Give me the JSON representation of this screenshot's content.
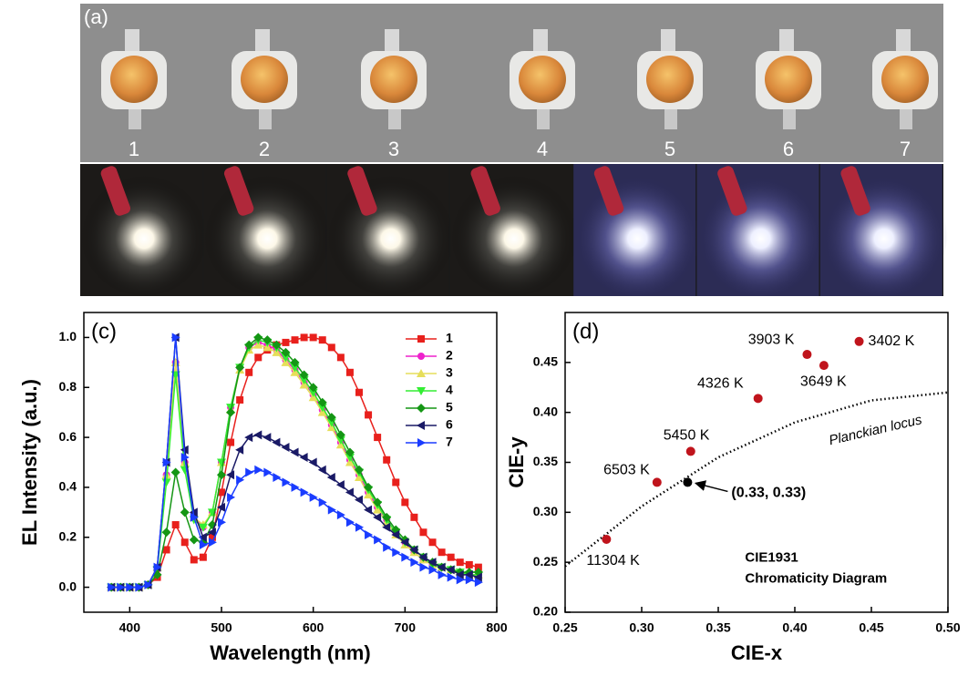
{
  "photo_panel": {
    "label": "(a)",
    "led_numbers": [
      "1",
      "2",
      "3",
      "4",
      "5",
      "6",
      "7"
    ]
  },
  "chart_data": [
    {
      "type": "line",
      "title": "(c)",
      "x_label": "Wavelength (nm)",
      "y_label": "EL Intensity (a.u.)",
      "x": [
        380,
        390,
        400,
        410,
        420,
        430,
        440,
        450,
        460,
        470,
        480,
        490,
        500,
        510,
        520,
        530,
        540,
        550,
        560,
        570,
        580,
        590,
        600,
        610,
        620,
        630,
        640,
        650,
        660,
        670,
        680,
        690,
        700,
        710,
        720,
        730,
        740,
        750,
        760,
        770,
        780
      ],
      "xlim": [
        350,
        800
      ],
      "xticks": [
        400,
        500,
        600,
        700,
        800
      ],
      "ylim": [
        -0.1,
        1.1
      ],
      "yticks": [
        {
          "value": 0,
          "label": "0.0"
        },
        0.2,
        0.4,
        0.6,
        0.8,
        {
          "value": 1,
          "label": "1.0"
        }
      ],
      "legend": "upper right",
      "series": [
        {
          "name": "1",
          "color": "#e8201c",
          "marker": "square",
          "values": [
            0,
            0,
            0,
            0,
            0.01,
            0.04,
            0.15,
            0.25,
            0.18,
            0.11,
            0.12,
            0.2,
            0.38,
            0.58,
            0.75,
            0.86,
            0.92,
            0.95,
            0.97,
            0.98,
            0.99,
            1.0,
            1.0,
            0.99,
            0.96,
            0.92,
            0.86,
            0.78,
            0.69,
            0.6,
            0.51,
            0.42,
            0.34,
            0.28,
            0.22,
            0.18,
            0.14,
            0.12,
            0.1,
            0.09,
            0.08
          ]
        },
        {
          "name": "2",
          "color": "#ee22cc",
          "marker": "circle",
          "values": [
            0,
            0,
            0,
            0,
            0.01,
            0.08,
            0.45,
            0.9,
            0.5,
            0.28,
            0.24,
            0.3,
            0.5,
            0.72,
            0.88,
            0.96,
            0.98,
            0.97,
            0.95,
            0.91,
            0.87,
            0.82,
            0.77,
            0.71,
            0.65,
            0.58,
            0.51,
            0.45,
            0.38,
            0.32,
            0.27,
            0.22,
            0.18,
            0.14,
            0.11,
            0.09,
            0.08,
            0.07,
            0.06,
            0.05,
            0.05
          ]
        },
        {
          "name": "3",
          "color": "#e6de5a",
          "marker": "triangle-up",
          "values": [
            0,
            0,
            0,
            0,
            0.01,
            0.08,
            0.45,
            0.9,
            0.5,
            0.28,
            0.25,
            0.3,
            0.5,
            0.71,
            0.87,
            0.95,
            0.97,
            0.96,
            0.94,
            0.9,
            0.86,
            0.81,
            0.76,
            0.7,
            0.64,
            0.57,
            0.5,
            0.44,
            0.37,
            0.31,
            0.26,
            0.21,
            0.17,
            0.14,
            0.11,
            0.09,
            0.08,
            0.07,
            0.06,
            0.05,
            0.05
          ]
        },
        {
          "name": "4",
          "color": "#33ee33",
          "marker": "triangle-down",
          "values": [
            0,
            0,
            0,
            0,
            0.01,
            0.07,
            0.42,
            0.85,
            0.47,
            0.27,
            0.24,
            0.3,
            0.5,
            0.72,
            0.88,
            0.96,
            0.99,
            0.98,
            0.96,
            0.92,
            0.88,
            0.83,
            0.78,
            0.72,
            0.66,
            0.59,
            0.52,
            0.46,
            0.39,
            0.33,
            0.27,
            0.22,
            0.18,
            0.15,
            0.12,
            0.09,
            0.08,
            0.07,
            0.06,
            0.05,
            0.05
          ]
        },
        {
          "name": "5",
          "color": "#149614",
          "marker": "diamond",
          "values": [
            0,
            0,
            0,
            0,
            0.01,
            0.05,
            0.22,
            0.46,
            0.3,
            0.19,
            0.18,
            0.25,
            0.45,
            0.7,
            0.88,
            0.97,
            1.0,
            0.99,
            0.97,
            0.94,
            0.9,
            0.85,
            0.8,
            0.74,
            0.68,
            0.61,
            0.54,
            0.47,
            0.4,
            0.34,
            0.28,
            0.23,
            0.19,
            0.15,
            0.12,
            0.1,
            0.08,
            0.07,
            0.06,
            0.06,
            0.06
          ]
        },
        {
          "name": "6",
          "color": "#1a1a66",
          "marker": "triangle-left",
          "values": [
            0,
            0,
            0,
            0,
            0.01,
            0.08,
            0.5,
            1.0,
            0.55,
            0.3,
            0.2,
            0.22,
            0.32,
            0.45,
            0.55,
            0.6,
            0.61,
            0.6,
            0.58,
            0.56,
            0.54,
            0.52,
            0.5,
            0.47,
            0.44,
            0.41,
            0.38,
            0.35,
            0.31,
            0.28,
            0.24,
            0.21,
            0.18,
            0.15,
            0.12,
            0.1,
            0.08,
            0.07,
            0.05,
            0.05,
            0.04
          ]
        },
        {
          "name": "7",
          "color": "#1a3cff",
          "marker": "triangle-right",
          "values": [
            0,
            0,
            0,
            0,
            0.01,
            0.08,
            0.5,
            1.0,
            0.52,
            0.28,
            0.17,
            0.18,
            0.26,
            0.36,
            0.43,
            0.46,
            0.47,
            0.46,
            0.44,
            0.42,
            0.4,
            0.38,
            0.36,
            0.34,
            0.31,
            0.29,
            0.26,
            0.24,
            0.21,
            0.19,
            0.16,
            0.14,
            0.12,
            0.1,
            0.08,
            0.07,
            0.05,
            0.04,
            0.03,
            0.03,
            0.02
          ]
        }
      ]
    },
    {
      "type": "scatter",
      "title": "(d)",
      "x_label": "CIE-x",
      "y_label": "CIE-y",
      "xlim": [
        0.25,
        0.5
      ],
      "xticks": [
        0.25,
        {
          "value": 0.3,
          "label": "0.30"
        },
        0.35,
        {
          "value": 0.4,
          "label": "0.40"
        },
        0.45,
        {
          "value": 0.5,
          "label": "0.50"
        }
      ],
      "ylim": [
        0.2,
        0.5
      ],
      "yticks": [
        {
          "value": 0.2,
          "label": "0.20"
        },
        0.25,
        {
          "value": 0.3,
          "label": "0.30"
        },
        0.35,
        {
          "value": 0.4,
          "label": "0.40"
        },
        0.45
      ],
      "series": [
        {
          "color": "#c0141c",
          "x": [
            0.277,
            0.31,
            0.332,
            0.376,
            0.408,
            0.419,
            0.442
          ],
          "values": [
            0.273,
            0.33,
            0.361,
            0.414,
            0.458,
            0.447,
            0.471
          ],
          "labels": [
            "11304 K",
            "6503 K",
            "5450 K",
            "4326 K",
            "3903 K",
            "3649 K",
            "3402 K"
          ]
        },
        {
          "color": "#000000",
          "x": [
            0.33
          ],
          "values": [
            0.33
          ],
          "labels": [
            "(0.33, 0.33)"
          ]
        }
      ],
      "locus": {
        "label": "Planckian locus",
        "x": [
          0.25,
          0.3,
          0.35,
          0.4,
          0.45,
          0.5
        ],
        "values": [
          0.246,
          0.306,
          0.355,
          0.39,
          0.412,
          0.42
        ]
      },
      "annotation": [
        "CIE1931",
        "Chromaticity Diagram"
      ]
    }
  ]
}
